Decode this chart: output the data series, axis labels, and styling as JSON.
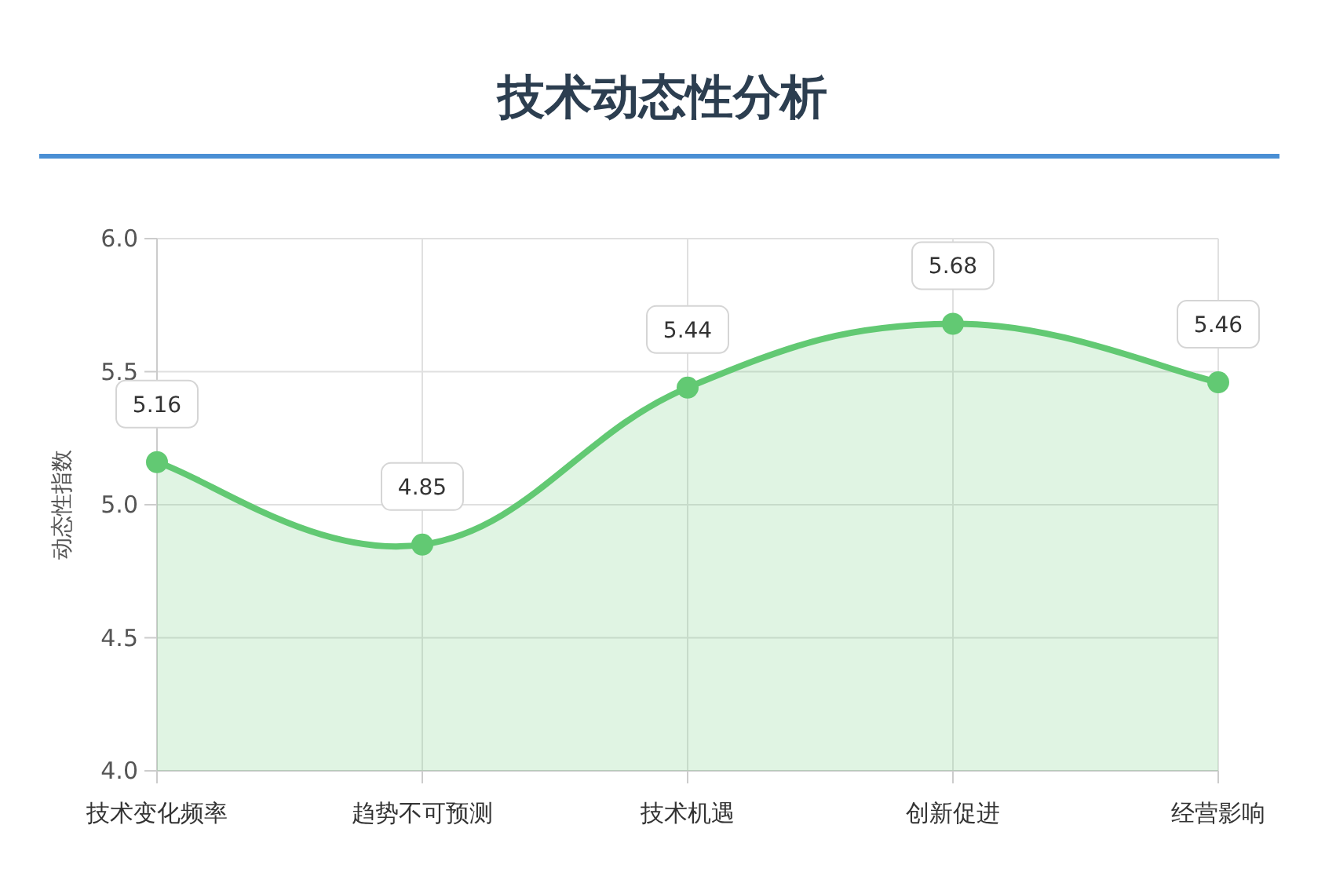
{
  "chart_data": {
    "type": "area",
    "title": "技术动态性分析",
    "ylabel": "动态性指数",
    "categories": [
      "技术变化频率",
      "趋势不可预测",
      "技术机遇",
      "创新促进",
      "经营影响"
    ],
    "values": [
      5.16,
      4.85,
      5.44,
      5.68,
      5.46
    ],
    "color": "#62c973",
    "ylim": [
      4,
      6
    ],
    "yticks": [
      {
        "value": 4,
        "label": "4.0"
      },
      {
        "value": 4.5,
        "label": "4.5"
      },
      {
        "value": 5,
        "label": "5.0"
      },
      {
        "value": 5.5,
        "label": "5.5"
      },
      {
        "value": 6,
        "label": "6.0"
      }
    ],
    "grid": true,
    "marker": "circle",
    "data_labels": true
  }
}
